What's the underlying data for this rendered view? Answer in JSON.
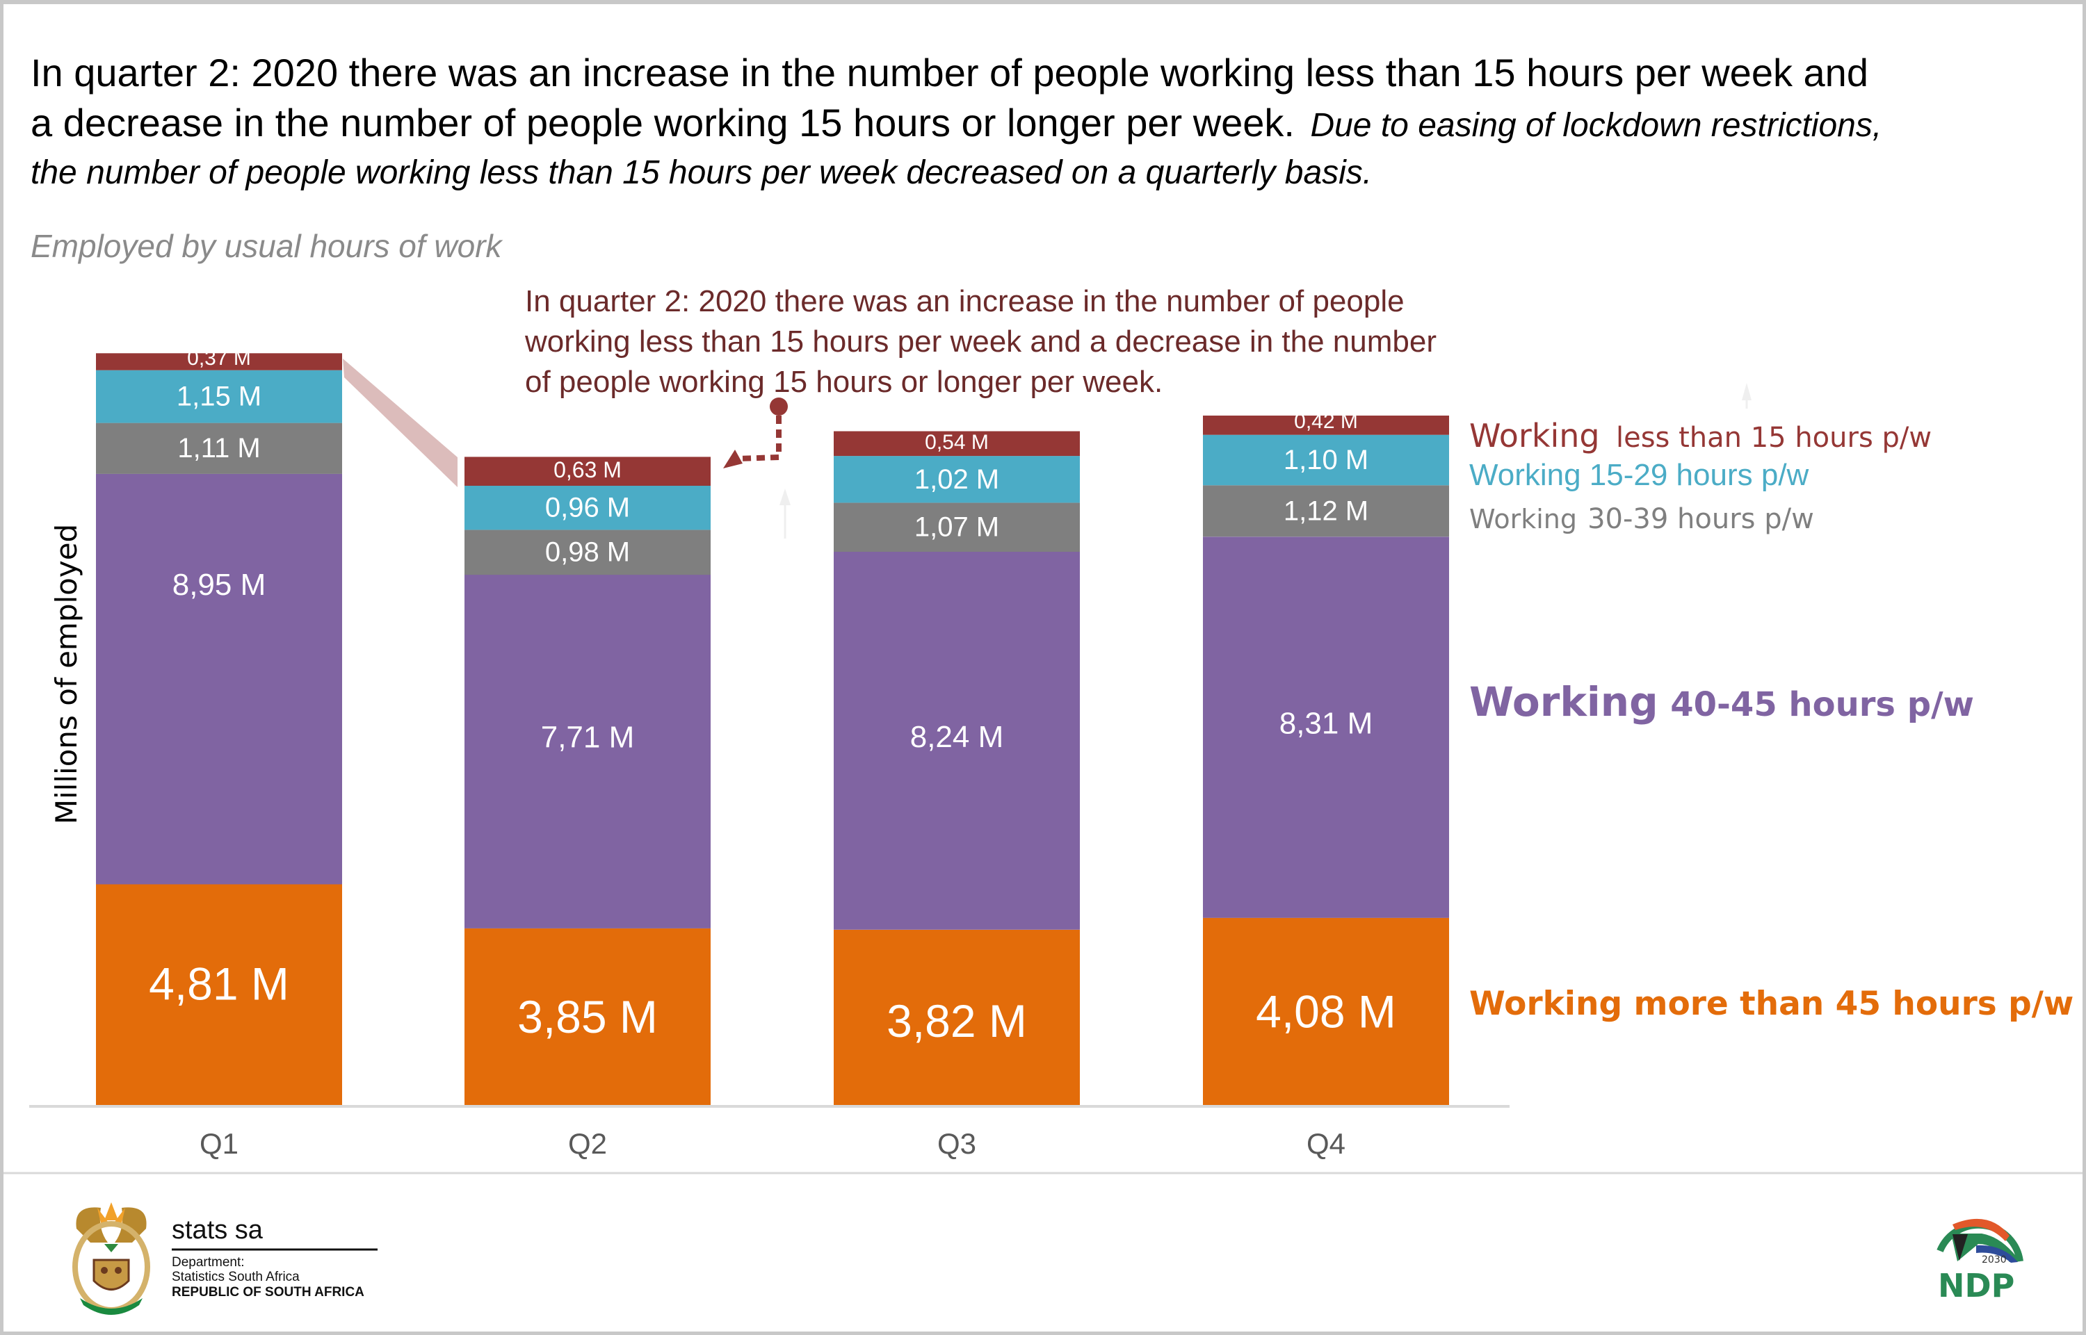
{
  "header": {
    "title_line1": "In quarter 2: 2020 there was an increase in the number of people working less than 15 hours per week and",
    "title_line2": "a decrease in the number of people working 15 hours or longer per week.",
    "title_line2_italic": "Due to easing of lockdown restrictions,",
    "title_line3_italic": "the number of people working less than 15 hours per week decreased on a quarterly basis.",
    "subtitle": "Employed by usual hours of work"
  },
  "annotation": {
    "lines": [
      "In quarter 2: 2020 there was an increase in the number of people",
      "working less than 15 hours per week and a decrease in the number",
      "of people working 15 hours or longer per week."
    ]
  },
  "chart_data": {
    "type": "bar",
    "stacked": true,
    "title": "Employed by usual hours of work",
    "xlabel": "",
    "ylabel": "Millions of employed",
    "categories": [
      "Q1",
      "Q2",
      "Q3",
      "Q4"
    ],
    "unit_suffix": " M",
    "decimal_separator": ",",
    "series": [
      {
        "name": "Working more than 45 hours p/w",
        "color": "#e36c0a",
        "values": [
          4.81,
          3.85,
          3.82,
          4.08
        ]
      },
      {
        "name": "Working 40-45 hours p/w",
        "color": "#8064a2",
        "values": [
          8.95,
          7.71,
          8.24,
          8.31
        ]
      },
      {
        "name": "Working 30-39 hours p/w",
        "color": "#7f7f7f",
        "values": [
          1.11,
          0.98,
          1.07,
          1.12
        ]
      },
      {
        "name": "Working 15-29 hours p/w",
        "color": "#4bacc6",
        "values": [
          1.15,
          0.96,
          1.02,
          1.1
        ]
      },
      {
        "name": "Working less than 15 hours p/w",
        "color": "#953735",
        "values": [
          0.37,
          0.63,
          0.54,
          0.42
        ]
      }
    ],
    "data_labels": [
      [
        "4,81 M",
        "3,85 M",
        "3,82 M",
        "4,08 M"
      ],
      [
        "8,95 M",
        "7,71 M",
        "8,24 M",
        "8,31 M"
      ],
      [
        "1,11 M",
        "0,98 M",
        "1,07 M",
        "1,12 M"
      ],
      [
        "1,15 M",
        "0,96 M",
        "1,02 M",
        "1,10 M"
      ],
      [
        "0,37 M",
        "0,63 M",
        "0,54 M",
        "0,42 M"
      ]
    ],
    "ylim": [
      0,
      16.5
    ],
    "grid": false,
    "legend_placement": "right"
  },
  "legend": {
    "lt15": {
      "prefix": "Working",
      "rest": "less than 15 hours p/w",
      "color": "#953735"
    },
    "h15_29": {
      "label": "Working 15-29 hours p/w",
      "color": "#4bacc6"
    },
    "h30_39": {
      "prefix": "Working",
      "rest": "30-39 hours p/w",
      "color": "#7f7f7f"
    },
    "h40_45": {
      "prefix": "Working",
      "rest": "40-45 hours p/w",
      "color": "#8064a2"
    },
    "gt45": {
      "label": "Working more than 45 hours p/w",
      "color": "#e36c0a"
    }
  },
  "footer": {
    "brand": "stats sa",
    "dept_line1": "Department:",
    "dept_line2": "Statistics South Africa",
    "dept_line3": "REPUBLIC OF SOUTH AFRICA",
    "ndp_year": "2030",
    "ndp_text": "NDP"
  },
  "colors": {
    "annotation": "#6b2a2a",
    "connector": "#dcbcbb",
    "axis": "#d9d9d9"
  }
}
